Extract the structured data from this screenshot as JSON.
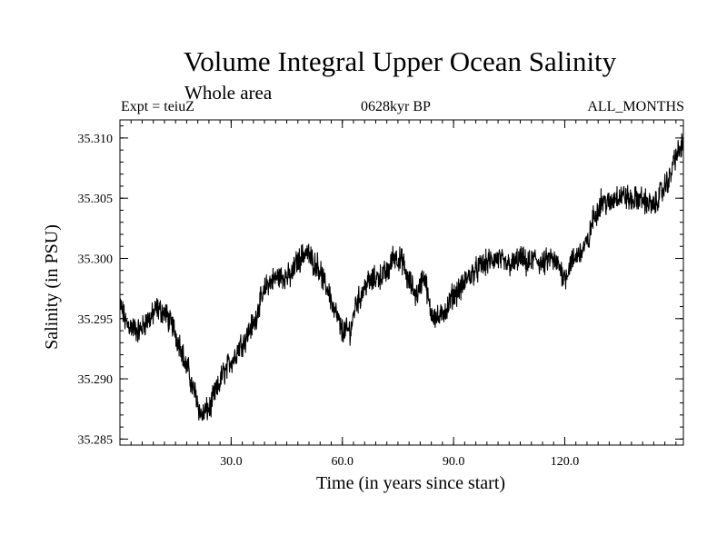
{
  "chart_data": {
    "type": "line",
    "title": "Volume Integral Upper Ocean Salinity",
    "subtitle": "Whole area",
    "annotation_left": "Expt = teiuZ",
    "annotation_center": "0628kyr BP",
    "annotation_right": "ALL_MONTHS",
    "xlabel": "Time (in years since start)",
    "ylabel": "Salinity (in PSU)",
    "xlim": [
      0,
      152
    ],
    "ylim": [
      35.2845,
      35.3115
    ],
    "xticks": [
      30,
      60,
      90,
      120
    ],
    "xtick_labels": [
      "30.0",
      "60.0",
      "90.0",
      "120.0"
    ],
    "yticks": [
      35.285,
      35.29,
      35.295,
      35.3,
      35.305,
      35.31
    ],
    "ytick_labels": [
      "35.285",
      "35.290",
      "35.295",
      "35.300",
      "35.305",
      "35.310"
    ],
    "series": [
      {
        "name": "salinity",
        "color": "#000000",
        "x": [
          0,
          2,
          5,
          8,
          10,
          12,
          14,
          16,
          18,
          20,
          22,
          24,
          26,
          28,
          30,
          33,
          36,
          38,
          40,
          43,
          46,
          48,
          50,
          53,
          56,
          58,
          60,
          62,
          64,
          67,
          70,
          72,
          74,
          76,
          78,
          80,
          82,
          84,
          86,
          88,
          90,
          92,
          94,
          96,
          98,
          100,
          102,
          104,
          106,
          108,
          110,
          112,
          114,
          116,
          118,
          120,
          122,
          124,
          126,
          128,
          130,
          132,
          134,
          136,
          138,
          140,
          142,
          144,
          146,
          148,
          150,
          152
        ],
        "y": [
          35.296,
          35.2945,
          35.294,
          35.295,
          35.2958,
          35.2955,
          35.2945,
          35.293,
          35.291,
          35.289,
          35.287,
          35.2875,
          35.289,
          35.2905,
          35.2915,
          35.293,
          35.2945,
          35.2965,
          35.298,
          35.2985,
          35.2985,
          35.2998,
          35.3005,
          35.2995,
          35.2975,
          35.2955,
          35.294,
          35.294,
          35.2965,
          35.298,
          35.2985,
          35.2988,
          35.3002,
          35.2998,
          35.298,
          35.297,
          35.2985,
          35.2955,
          35.295,
          35.2958,
          35.297,
          35.2975,
          35.2985,
          35.299,
          35.2995,
          35.2998,
          35.3,
          35.2995,
          35.2995,
          35.3,
          35.2995,
          35.3,
          35.2995,
          35.3,
          35.2995,
          35.2985,
          35.2998,
          35.3005,
          35.3012,
          35.3035,
          35.3048,
          35.3045,
          35.3052,
          35.3052,
          35.3048,
          35.305,
          35.3047,
          35.3043,
          35.3055,
          35.3065,
          35.3085,
          35.3095
        ]
      }
    ]
  }
}
